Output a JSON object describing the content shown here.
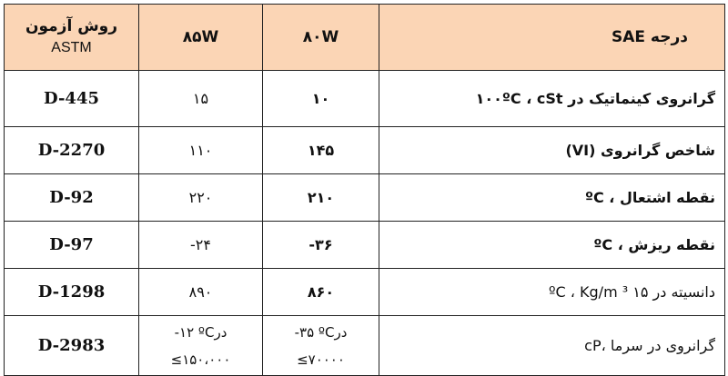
{
  "table": {
    "header": {
      "method_line1": "روش آزمون",
      "method_line2": "ASTM",
      "col_85w": "۸۵W",
      "col_80w": "۸۰W",
      "col_property": "درجه SAE"
    },
    "rows": [
      {
        "method": "D-445",
        "v85": "۱۵",
        "v80": "۱۰",
        "property": "گرانروی کینماتیک در ۱۰۰ºC ، cSt"
      },
      {
        "method": "D-2270",
        "v85": "۱۱۰",
        "v80": "۱۴۵",
        "property": "شاخص گرانروی (VI)"
      },
      {
        "method": "D-92",
        "v85": "۲۲۰",
        "v80": "۲۱۰",
        "property": "نقطه اشتعال ، ºC"
      },
      {
        "method": "D-97",
        "v85": "-۲۴",
        "v80": "-۳۶",
        "property": "نقطه ریزش ، ºC"
      },
      {
        "method": "D-1298",
        "v85": "۸۹۰",
        "v80": "۸۶۰",
        "property": "دانسیته در ۱۵ ºC ، Kg/m ³"
      },
      {
        "method": "D-2983",
        "v85_line1": "-۱۲ ºCدر",
        "v85_line2": "≤۱۵۰،۰۰۰",
        "v80_line1": "-۳۵ ºCدر",
        "v80_line2": "≤۷۰۰۰۰",
        "property": "گرانروی در سرما ،cP"
      }
    ]
  }
}
